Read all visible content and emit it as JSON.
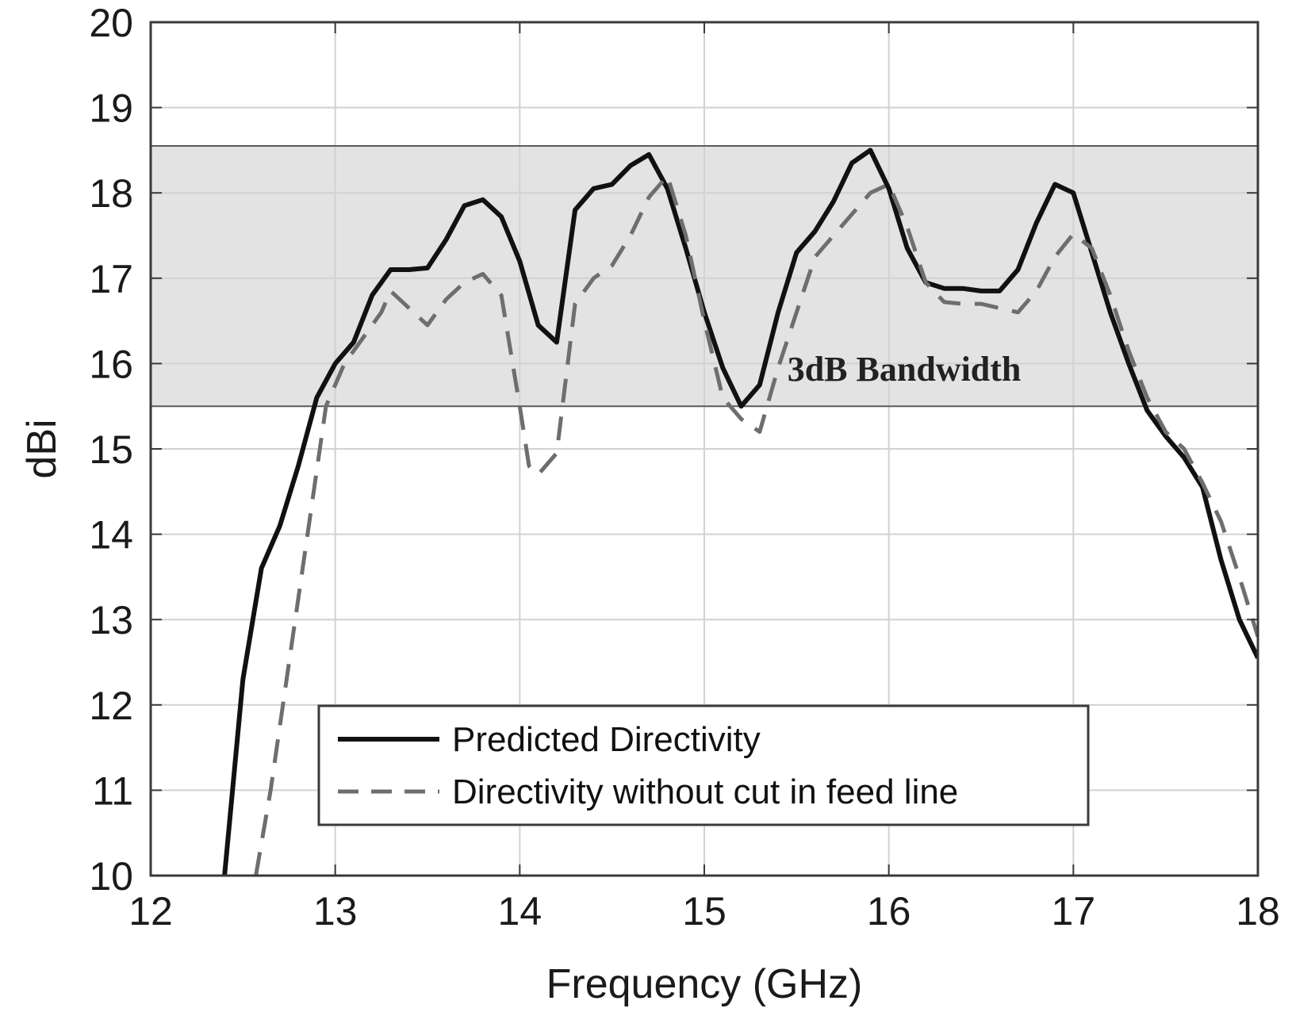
{
  "chart_data": {
    "type": "line",
    "title": "",
    "xlabel": "Frequency (GHz)",
    "ylabel": "dBi",
    "xlim": [
      12,
      18
    ],
    "ylim": [
      10,
      20
    ],
    "xticks": [
      12,
      13,
      14,
      15,
      16,
      17,
      18
    ],
    "yticks": [
      10,
      11,
      12,
      13,
      14,
      15,
      16,
      17,
      18,
      19,
      20
    ],
    "grid": true,
    "legend_position": "bottom-center",
    "band": {
      "label": "3dB Bandwidth",
      "y_low": 15.5,
      "y_high": 18.55,
      "color": "#e3e3e3"
    },
    "series": [
      {
        "name": "Predicted Directivity",
        "style": "solid",
        "color": "#111111",
        "x": [
          12.4,
          12.5,
          12.6,
          12.7,
          12.8,
          12.9,
          13.0,
          13.1,
          13.2,
          13.3,
          13.4,
          13.5,
          13.6,
          13.7,
          13.8,
          13.9,
          14.0,
          14.1,
          14.2,
          14.3,
          14.4,
          14.5,
          14.6,
          14.7,
          14.8,
          14.9,
          15.0,
          15.1,
          15.2,
          15.3,
          15.4,
          15.5,
          15.6,
          15.7,
          15.8,
          15.9,
          16.0,
          16.1,
          16.2,
          16.3,
          16.4,
          16.5,
          16.6,
          16.7,
          16.8,
          16.9,
          17.0,
          17.1,
          17.2,
          17.3,
          17.4,
          17.5,
          17.6,
          17.7,
          17.8,
          17.9,
          18.0
        ],
        "values": [
          10.0,
          12.3,
          13.6,
          14.1,
          14.8,
          15.6,
          16.0,
          16.25,
          16.8,
          17.1,
          17.1,
          17.12,
          17.45,
          17.85,
          17.92,
          17.72,
          17.2,
          16.45,
          16.25,
          17.8,
          18.05,
          18.1,
          18.32,
          18.45,
          18.05,
          17.35,
          16.6,
          15.95,
          15.5,
          15.75,
          16.6,
          17.3,
          17.55,
          17.9,
          18.35,
          18.5,
          18.05,
          17.35,
          16.95,
          16.88,
          16.88,
          16.85,
          16.85,
          17.1,
          17.65,
          18.1,
          18.0,
          17.3,
          16.6,
          16.0,
          15.45,
          15.15,
          14.9,
          14.55,
          13.7,
          13.0,
          12.55
        ]
      },
      {
        "name": "Directivity without cut in feed line",
        "style": "dashed",
        "color": "#6e6e6e",
        "x": [
          12.57,
          12.65,
          12.75,
          12.85,
          12.95,
          13.05,
          13.15,
          13.25,
          13.3,
          13.4,
          13.5,
          13.6,
          13.7,
          13.8,
          13.9,
          14.0,
          14.05,
          14.1,
          14.2,
          14.3,
          14.4,
          14.5,
          14.6,
          14.7,
          14.8,
          14.9,
          15.0,
          15.1,
          15.2,
          15.3,
          15.4,
          15.5,
          15.6,
          15.7,
          15.8,
          15.9,
          16.0,
          16.1,
          16.2,
          16.3,
          16.4,
          16.5,
          16.6,
          16.7,
          16.8,
          16.9,
          17.0,
          17.1,
          17.2,
          17.3,
          17.4,
          17.5,
          17.6,
          17.7,
          17.8,
          17.9,
          18.0
        ],
        "values": [
          10.0,
          11.0,
          12.5,
          14.0,
          15.5,
          16.0,
          16.3,
          16.6,
          16.85,
          16.65,
          16.45,
          16.75,
          16.95,
          17.05,
          16.8,
          15.5,
          14.8,
          14.7,
          14.95,
          16.7,
          17.0,
          17.15,
          17.5,
          17.95,
          18.2,
          17.5,
          16.5,
          15.6,
          15.35,
          15.2,
          15.95,
          16.6,
          17.25,
          17.5,
          17.75,
          18.0,
          18.1,
          17.6,
          16.95,
          16.72,
          16.7,
          16.7,
          16.65,
          16.6,
          16.85,
          17.25,
          17.52,
          17.35,
          16.8,
          16.15,
          15.6,
          15.2,
          15.0,
          14.6,
          14.15,
          13.5,
          12.8
        ]
      }
    ]
  }
}
